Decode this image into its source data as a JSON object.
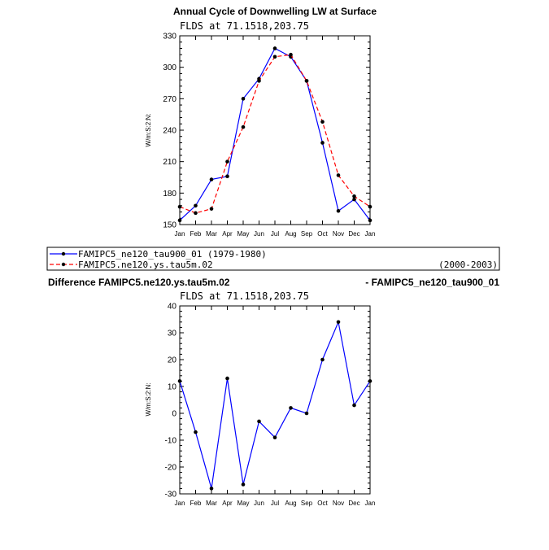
{
  "figure": {
    "title": "Annual Cycle of Downwelling LW at Surface",
    "diff_title_left": "Difference FAMIPC5.ne120.ys.tau5m.02",
    "diff_title_right": "- FAMIPC5_ne120_tau900_01"
  },
  "legend": {
    "entries": [
      {
        "label": "FAMIPC5_ne120_tau900_01 (1979-1980)",
        "period": "",
        "color": "#0000ff",
        "dash": "solid"
      },
      {
        "label": "FAMIPC5.ne120.ys.tau5m.02",
        "period": "(2000-2003)",
        "color": "#ff0000",
        "dash": "dashed"
      }
    ]
  },
  "chart_data": [
    {
      "type": "line",
      "subtitle": "FLDS at 71.1518,203.75",
      "ylabel": "W/m:S:2:N:",
      "xlabel": "",
      "categories": [
        "Jan",
        "Feb",
        "Mar",
        "Apr",
        "May",
        "Jun",
        "Jul",
        "Aug",
        "Sep",
        "Oct",
        "Nov",
        "Dec",
        "Jan"
      ],
      "ylim": [
        150,
        330
      ],
      "yticks": [
        150,
        180,
        210,
        240,
        270,
        300,
        330
      ],
      "series": [
        {
          "name": "FAMIPC5_ne120_tau900_01",
          "color": "#0000ff",
          "dash": "solid",
          "values": [
            154,
            168,
            193,
            196,
            270,
            289,
            318,
            310,
            287,
            228,
            163,
            174,
            154
          ]
        },
        {
          "name": "FAMIPC5.ne120.ys.tau5m.02",
          "color": "#ff0000",
          "dash": "dashed",
          "values": [
            167,
            161,
            165,
            210,
            243,
            287,
            310,
            312,
            287,
            248,
            197,
            177,
            167
          ]
        }
      ],
      "grid": false,
      "legend": "below"
    },
    {
      "type": "line",
      "subtitle": "FLDS at 71.1518,203.75",
      "ylabel": "W/m:S:2:N:",
      "xlabel": "",
      "categories": [
        "Jan",
        "Feb",
        "Mar",
        "Apr",
        "May",
        "Jun",
        "Jul",
        "Aug",
        "Sep",
        "Oct",
        "Nov",
        "Dec",
        "Jan"
      ],
      "ylim": [
        -30,
        40
      ],
      "yticks": [
        -30,
        -20,
        -10,
        0,
        10,
        20,
        30,
        40
      ],
      "series": [
        {
          "color": "#0000ff",
          "dash": "solid",
          "values": [
            12,
            -7,
            -28,
            13,
            -26.5,
            -3,
            -9,
            2,
            0,
            20,
            34,
            3,
            12
          ]
        }
      ],
      "grid": false
    }
  ]
}
